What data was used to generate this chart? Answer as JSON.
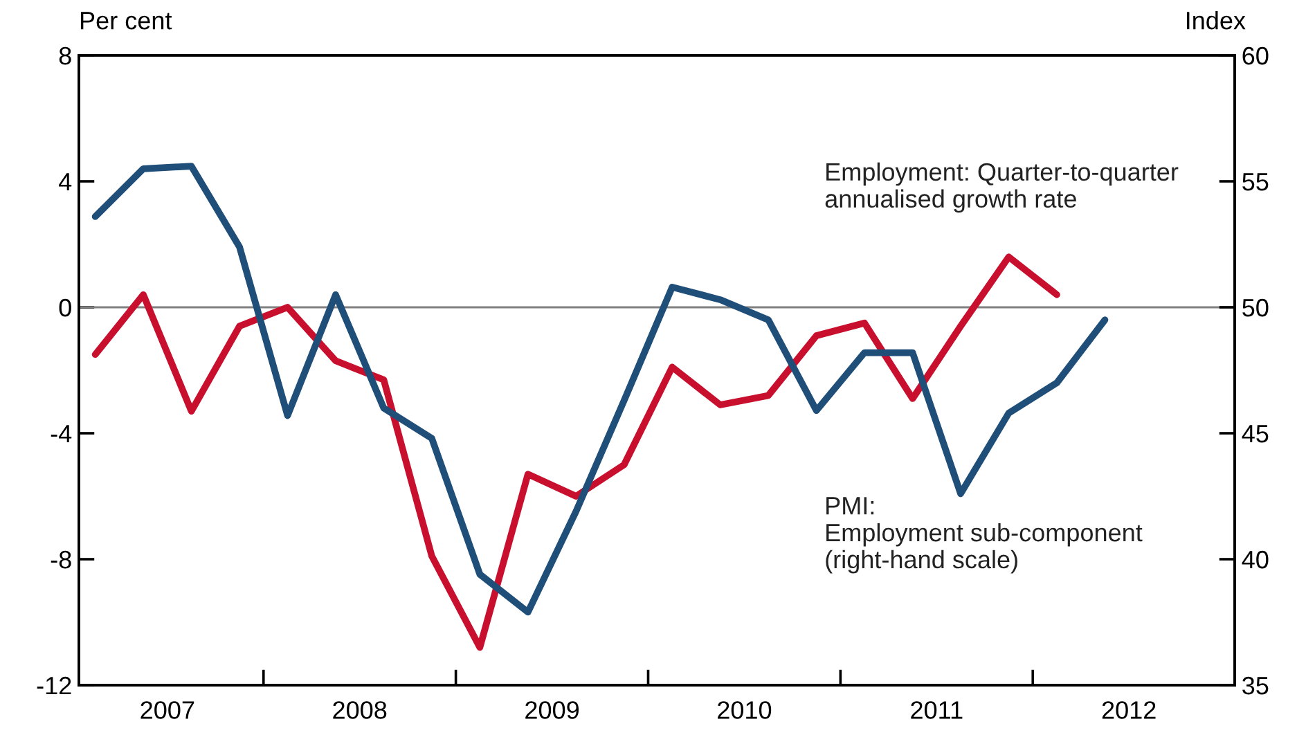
{
  "chart_data": {
    "type": "line",
    "ylabel": "Per cent",
    "y2label": "Index",
    "x": [
      2007.125,
      2007.375,
      2007.625,
      2007.875,
      2008.125,
      2008.375,
      2008.625,
      2008.875,
      2009.125,
      2009.375,
      2009.625,
      2009.875,
      2010.125,
      2010.375,
      2010.625,
      2010.875,
      2011.125,
      2011.375,
      2011.625,
      2011.875,
      2012.125,
      2012.375
    ],
    "xlim": [
      2007.04,
      2013.05
    ],
    "xticks": [
      {
        "value": 2008,
        "label": null
      },
      {
        "value": 2009,
        "label": null
      },
      {
        "value": 2010,
        "label": null
      },
      {
        "value": 2011,
        "label": null
      },
      {
        "value": 2012,
        "label": null
      },
      {
        "value": 2007.5,
        "label": "2007"
      },
      {
        "value": 2008.5,
        "label": "2008"
      },
      {
        "value": 2009.5,
        "label": "2009"
      },
      {
        "value": 2010.5,
        "label": "2010"
      },
      {
        "value": 2011.5,
        "label": "2011"
      },
      {
        "value": 2012.5,
        "label": "2012"
      }
    ],
    "ylim": [
      -12,
      8
    ],
    "yticks": [
      -12,
      -8,
      -4,
      0,
      4,
      8
    ],
    "y2lim": [
      35,
      60
    ],
    "y2ticks": [
      35,
      40,
      45,
      50,
      55,
      60
    ],
    "series": [
      {
        "name": "Employment: Quarter-to-quarter\nannualised growth rate",
        "color": "#c8102e",
        "values": [
          -1.5,
          0.4,
          -3.3,
          -0.6,
          0.0,
          -1.7,
          -2.3,
          -7.9,
          -10.8,
          -5.3,
          -6.0,
          -5.0,
          -1.9,
          -3.1,
          -2.8,
          -0.9,
          -0.5,
          -2.9,
          -0.6,
          1.6,
          0.4,
          null
        ]
      },
      {
        "name": "PMI:\nEmployment sub-component\n(right-hand scale)",
        "color": "#1f4e79",
        "axis": "y2",
        "values": [
          53.6,
          55.5,
          55.6,
          52.4,
          45.7,
          50.5,
          46.0,
          44.8,
          39.4,
          37.9,
          41.9,
          46.3,
          50.8,
          50.3,
          49.5,
          45.9,
          48.2,
          48.2,
          42.6,
          45.8,
          47.0,
          49.5
        ]
      }
    ],
    "ref_lines": [
      {
        "axis": "y",
        "value": 0,
        "color": "#808080"
      }
    ],
    "grid": false,
    "legend": false
  }
}
